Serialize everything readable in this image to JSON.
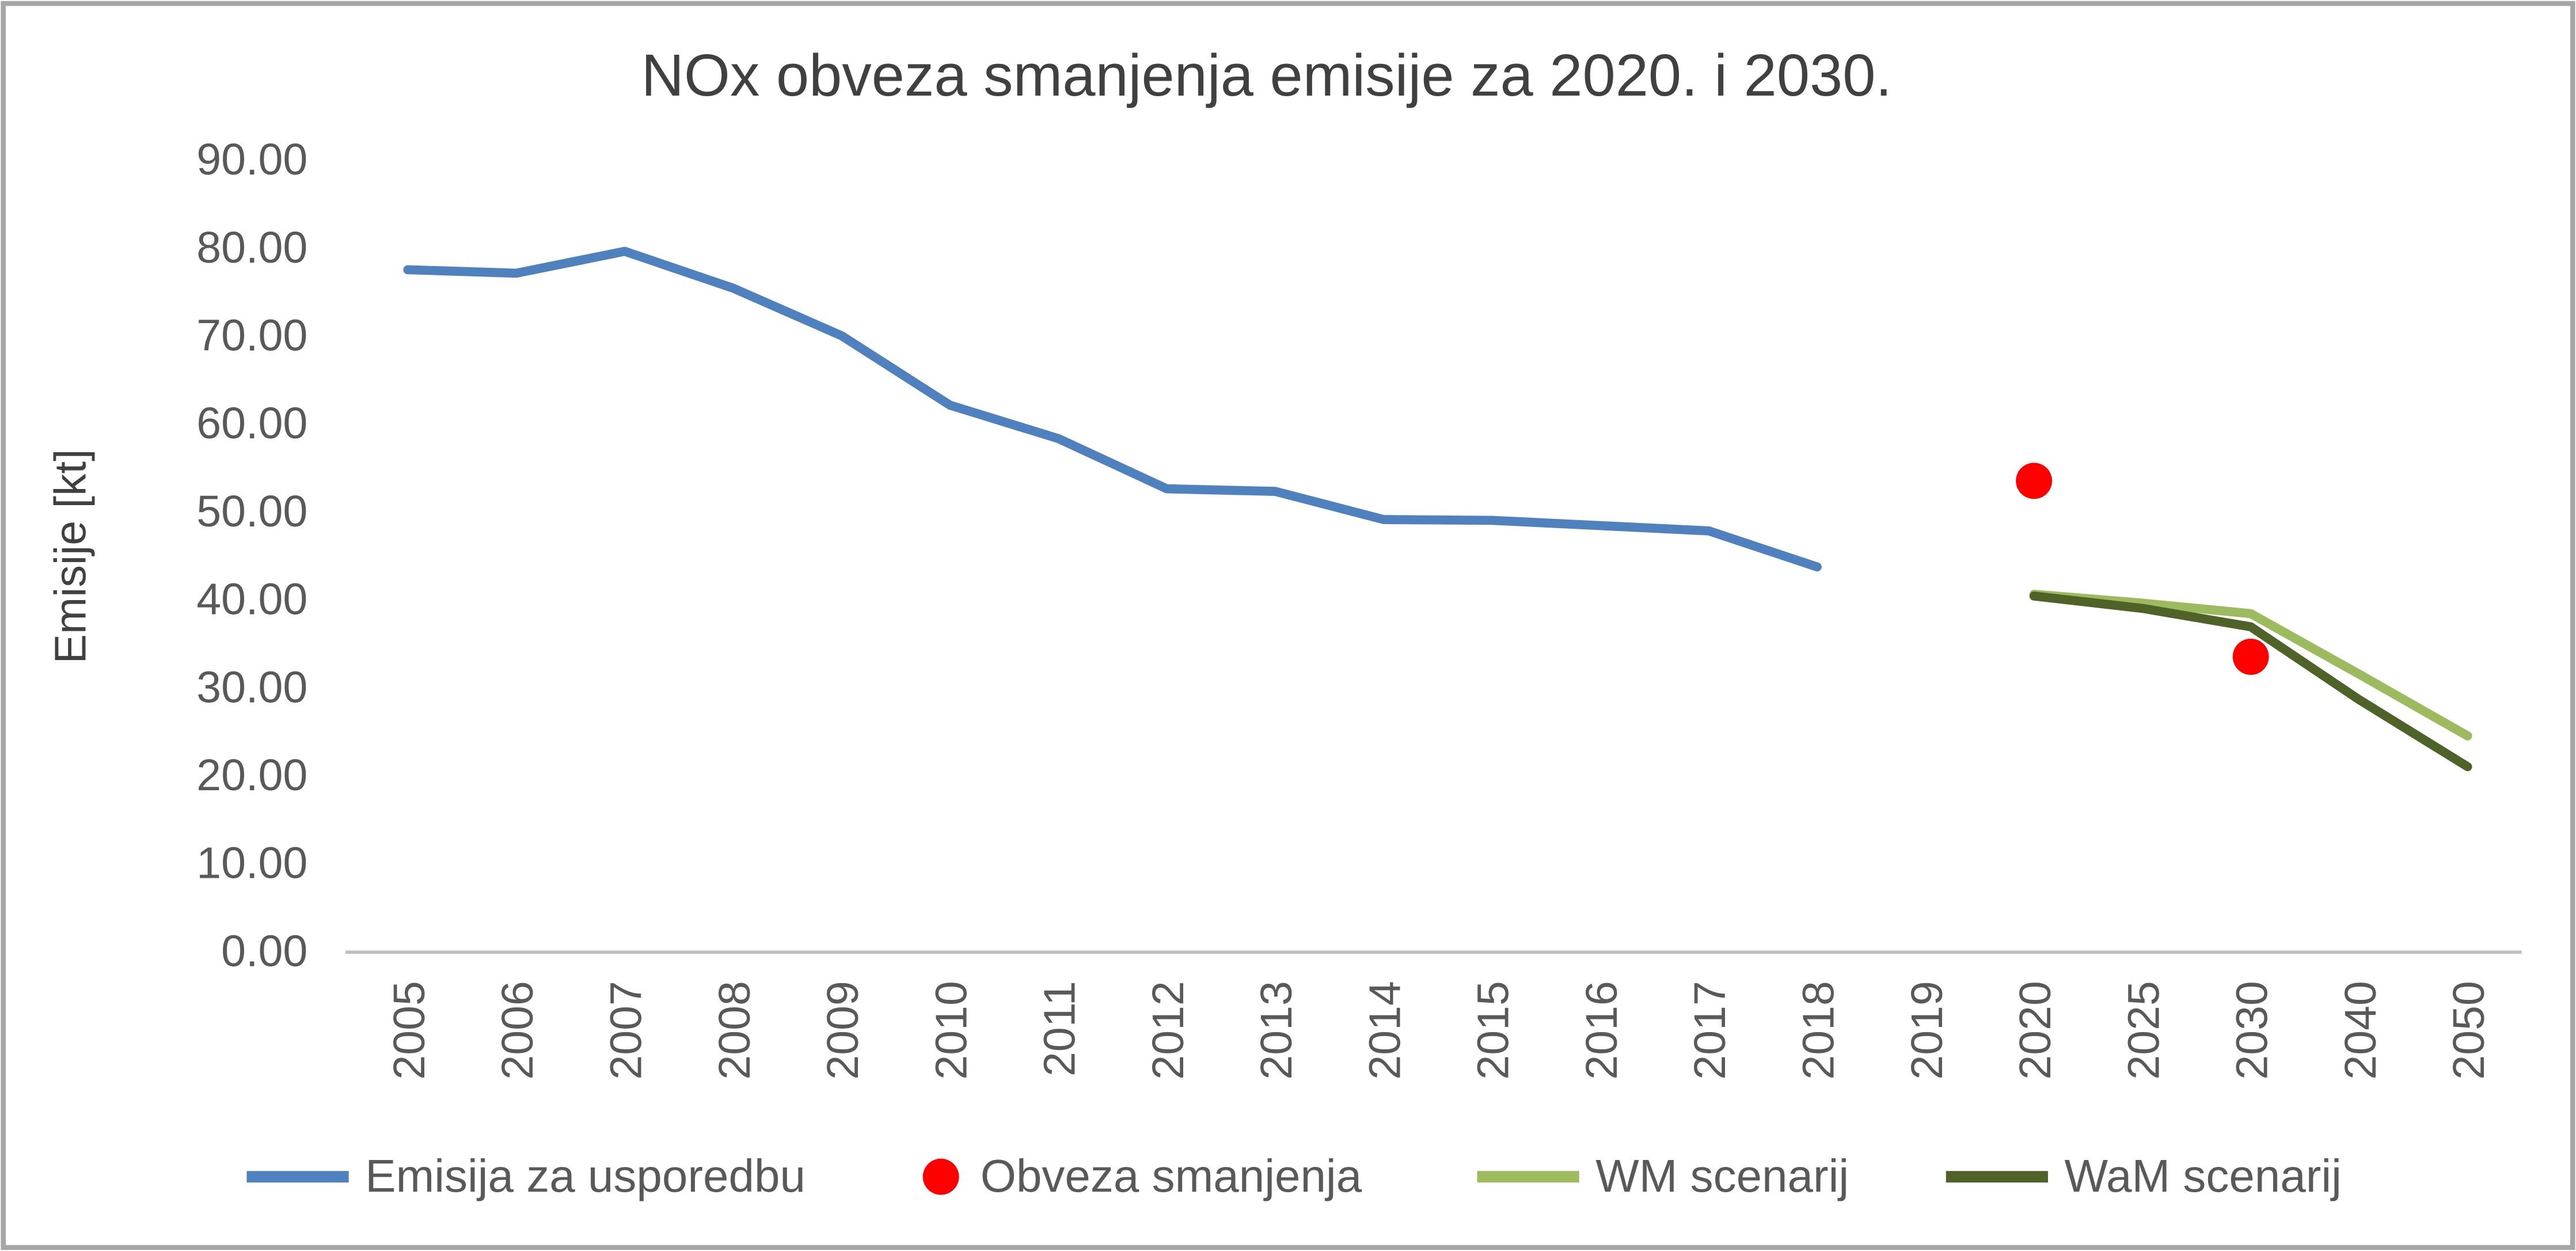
{
  "chart_data": {
    "type": "line",
    "title": "NOx obveza smanjenja emisije za 2020. i 2030.",
    "ylabel": "Emisije [kt]",
    "xlabel": "",
    "ylim": [
      0,
      90
    ],
    "yticks": [
      {
        "value": 0,
        "label": "0.00"
      },
      {
        "value": 10,
        "label": "10.00"
      },
      {
        "value": 20,
        "label": "20.00"
      },
      {
        "value": 30,
        "label": "30.00"
      },
      {
        "value": 40,
        "label": "40.00"
      },
      {
        "value": 50,
        "label": "50.00"
      },
      {
        "value": 60,
        "label": "60.00"
      },
      {
        "value": 70,
        "label": "70.00"
      },
      {
        "value": 80,
        "label": "80.00"
      },
      {
        "value": 90,
        "label": "90.00"
      }
    ],
    "grid": false,
    "legend_position": "bottom",
    "categories": [
      "2005",
      "2006",
      "2007",
      "2008",
      "2009",
      "2010",
      "2011",
      "2012",
      "2013",
      "2014",
      "2015",
      "2016",
      "2017",
      "2018",
      "2019",
      "2020",
      "2025",
      "2030",
      "2040",
      "2050"
    ],
    "series": [
      {
        "name": "Emisija za usporedbu",
        "type": "line",
        "color": "#4E81BD",
        "points": {
          "2005": 77.5,
          "2006": 77.1,
          "2007": 79.6,
          "2008": 75.4,
          "2009": 70.0,
          "2010": 62.1,
          "2011": 58.3,
          "2012": 52.6,
          "2013": 52.3,
          "2014": 49.1,
          "2015": 49.0,
          "2016": 48.4,
          "2017": 47.8,
          "2018": 43.7
        }
      },
      {
        "name": "Obveza smanjenja",
        "type": "scatter",
        "color": "#FF0000",
        "points": {
          "2020": 53.5,
          "2030": 33.5
        }
      },
      {
        "name": "WM scenarij",
        "type": "line",
        "color": "#9CBB5F",
        "points": {
          "2020": 40.6,
          "2025": 39.6,
          "2030": 38.4,
          "2040": 31.5,
          "2050": 24.5
        }
      },
      {
        "name": "WaM scenarij",
        "type": "line",
        "color": "#4F6228",
        "points": {
          "2020": 40.4,
          "2025": 39.0,
          "2030": 36.9,
          "2040": 28.6,
          "2050": 21.0
        }
      }
    ]
  }
}
